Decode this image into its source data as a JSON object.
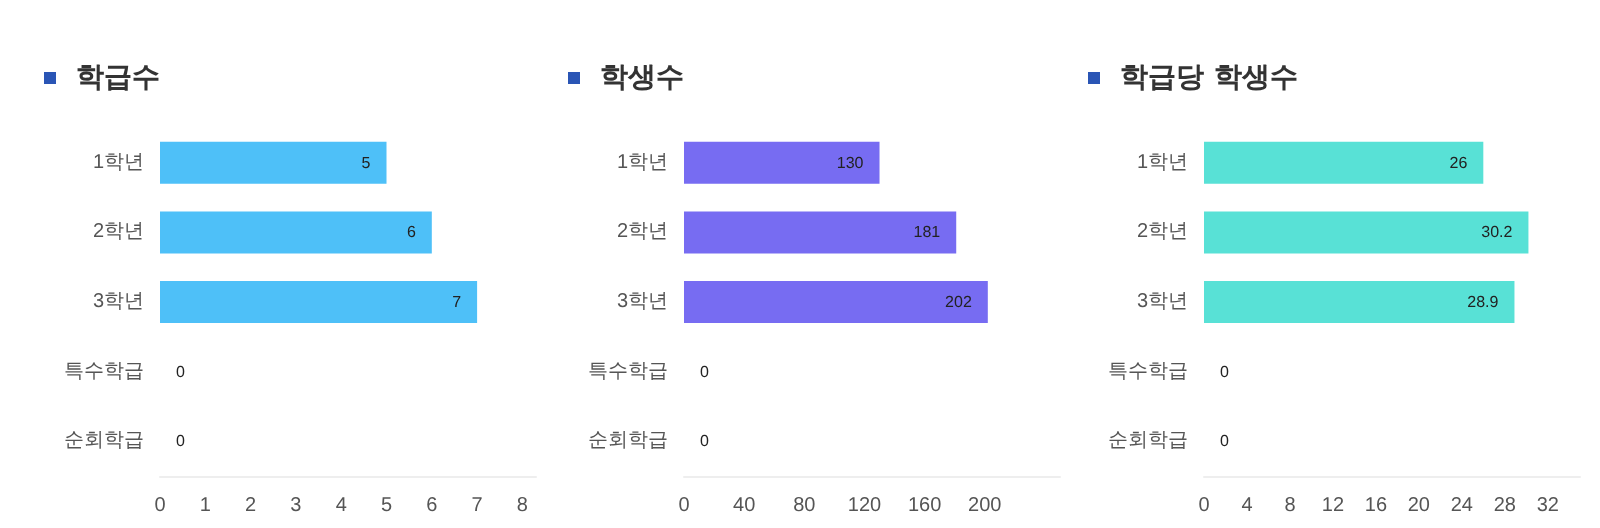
{
  "chart_data": [
    {
      "type": "bar",
      "orientation": "horizontal",
      "title": "학급수",
      "categories": [
        "1학년",
        "2학년",
        "3학년",
        "특수학급",
        "순회학급"
      ],
      "values": [
        5,
        6,
        7,
        0,
        0
      ],
      "color": "#4ec0f8",
      "xlim": [
        0,
        8.3
      ],
      "xticks": [
        0,
        1,
        2,
        3,
        4,
        5,
        6,
        7,
        8
      ],
      "data_labels": true
    },
    {
      "type": "bar",
      "orientation": "horizontal",
      "title": "학생수",
      "categories": [
        "1학년",
        "2학년",
        "3학년",
        "특수학급",
        "순회학급"
      ],
      "values": [
        130,
        181,
        202,
        0,
        0
      ],
      "color": "#776cf2",
      "xlim": [
        0,
        250
      ],
      "xticks": [
        0,
        40,
        80,
        120,
        160,
        200
      ],
      "data_labels": true
    },
    {
      "type": "bar",
      "orientation": "horizontal",
      "title": "학급당 학생수",
      "categories": [
        "1학년",
        "2학년",
        "3학년",
        "특수학급",
        "순회학급"
      ],
      "values": [
        26,
        30.2,
        28.9,
        0,
        0
      ],
      "color": "#58e1d6",
      "xlim": [
        0,
        35
      ],
      "xticks": [
        0,
        4,
        8,
        12,
        16,
        20,
        24,
        28,
        32
      ],
      "data_labels": true
    }
  ]
}
